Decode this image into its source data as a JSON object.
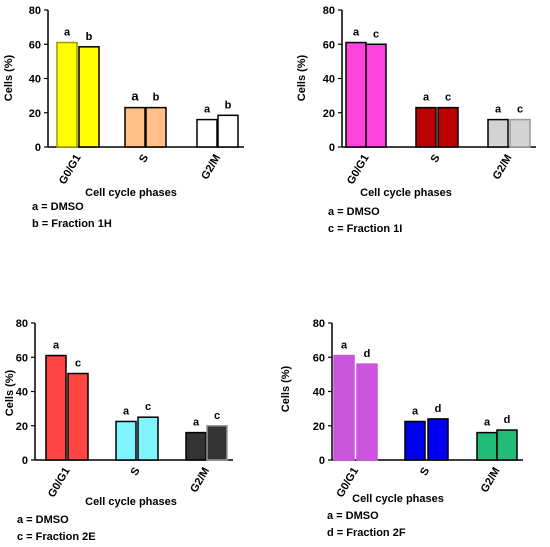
{
  "chart_data": [
    {
      "type": "bar",
      "categories": [
        "G0/G1",
        "S",
        "G2/M"
      ],
      "xlabel": "Cell cycle phases",
      "ylabel": "Cells (%)",
      "ylim": [
        0,
        80
      ],
      "yticks": [
        0,
        20,
        40,
        60,
        80
      ],
      "grid": false,
      "series": [
        {
          "name": "a",
          "values": [
            61,
            23,
            16
          ],
          "labels": [
            "a",
            "a",
            "a"
          ],
          "fill_colors": [
            "#ffff00",
            "#ffbf86",
            "#ffffff"
          ],
          "edge_colors": [
            "#999900",
            "#000000",
            "#000000"
          ]
        },
        {
          "name": "b",
          "values": [
            58.5,
            23,
            18.5
          ],
          "labels": [
            "b",
            "b",
            "b"
          ],
          "fill_colors": [
            "#ffff00",
            "#ffbf86",
            "#ffffff"
          ],
          "edge_colors": [
            "#000000",
            "#000000",
            "#000000"
          ]
        }
      ],
      "legend": [
        "a = DMSO",
        "b = Fraction 1H"
      ]
    },
    {
      "type": "bar",
      "categories": [
        "G0/G1",
        "S",
        "G2/M"
      ],
      "xlabel": "Cell cycle phases",
      "ylabel": "Cells (%)",
      "ylim": [
        0,
        80
      ],
      "yticks": [
        0,
        20,
        40,
        60,
        80
      ],
      "grid": false,
      "series": [
        {
          "name": "a",
          "values": [
            61,
            23,
            16
          ],
          "labels": [
            "a",
            "a",
            "a"
          ],
          "fill_colors": [
            "#ff44dd",
            "#bb0000",
            "#d3d3d3"
          ],
          "edge_colors": [
            "#000000",
            "#000000",
            "#000000"
          ]
        },
        {
          "name": "c",
          "values": [
            60,
            23,
            16
          ],
          "labels": [
            "c",
            "c",
            "c"
          ],
          "fill_colors": [
            "#ff44dd",
            "#bb0000",
            "#d3d3d3"
          ],
          "edge_colors": [
            "#000000",
            "#000000",
            "#999999"
          ]
        }
      ],
      "legend": [
        "a = DMSO",
        "c = Fraction 1I"
      ]
    },
    {
      "type": "bar",
      "categories": [
        "G0/G1",
        "S",
        "G2/M"
      ],
      "xlabel": "Cell cycle phases",
      "ylabel": "Cells (%)",
      "ylim": [
        0,
        80
      ],
      "yticks": [
        0,
        20,
        40,
        60,
        80
      ],
      "grid": false,
      "series": [
        {
          "name": "a",
          "values": [
            61,
            22.5,
            16
          ],
          "labels": [
            "a",
            "a",
            "a"
          ],
          "fill_colors": [
            "#ff4444",
            "#7ff5ff",
            "#333333"
          ],
          "edge_colors": [
            "#000000",
            "#000000",
            "#000000"
          ]
        },
        {
          "name": "c",
          "values": [
            50.5,
            25,
            20
          ],
          "labels": [
            "c",
            "c",
            "c"
          ],
          "fill_colors": [
            "#ff4444",
            "#7ff5ff",
            "#333333"
          ],
          "edge_colors": [
            "#000000",
            "#000000",
            "#999999"
          ]
        }
      ],
      "legend": [
        "a = DMSO",
        "c = Fraction 2E"
      ]
    },
    {
      "type": "bar",
      "categories": [
        "G0/G1",
        "S",
        "G2/M"
      ],
      "xlabel": "Cell cycle phases",
      "ylabel": "Cells (%)",
      "ylim": [
        0,
        80
      ],
      "yticks": [
        0,
        20,
        40,
        60,
        80
      ],
      "grid": false,
      "series": [
        {
          "name": "a",
          "values": [
            61,
            22.5,
            16
          ],
          "labels": [
            "a",
            "a",
            "a"
          ],
          "fill_colors": [
            "#cc55dd",
            "#0000ee",
            "#22bb77"
          ],
          "edge_colors": [
            "#cc55dd",
            "#000000",
            "#000000"
          ]
        },
        {
          "name": "d",
          "values": [
            56,
            24,
            17.5
          ],
          "labels": [
            "d",
            "d",
            "d"
          ],
          "fill_colors": [
            "#cc55dd",
            "#0000ee",
            "#22bb77"
          ],
          "edge_colors": [
            "#cc55dd",
            "#000000",
            "#000000"
          ]
        }
      ],
      "legend": [
        "a = DMSO",
        "d = Fraction 2F"
      ]
    }
  ]
}
